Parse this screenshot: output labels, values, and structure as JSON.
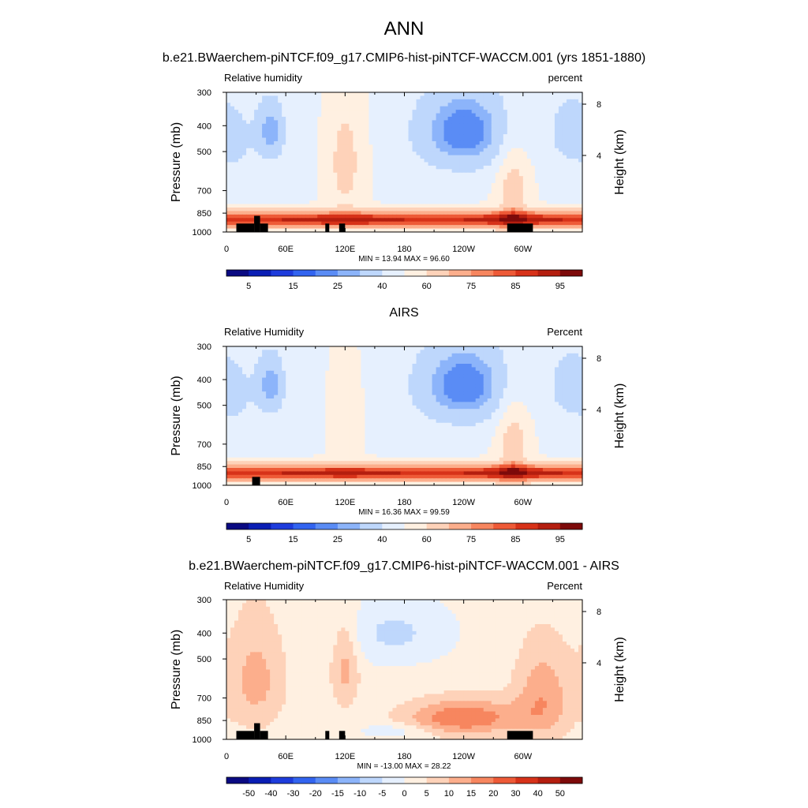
{
  "page": {
    "title": "ANN"
  },
  "colors": {
    "rh_palette": [
      "#0a0a82",
      "#0a1eb4",
      "#1e3cdc",
      "#3264f0",
      "#5a8cf5",
      "#8cb4fa",
      "#bed7fc",
      "#e6f0fe",
      "#fff0e1",
      "#fed2b9",
      "#fcae8c",
      "#f7865f",
      "#ee5a37",
      "#d73219",
      "#b41e0f",
      "#7d0a0a"
    ],
    "diff_palette": [
      "#0a0a82",
      "#0a1eb4",
      "#1e3cdc",
      "#3264f0",
      "#5a8cf5",
      "#8cb4fa",
      "#bed7fc",
      "#e6f0fe",
      "#fff0e1",
      "#fed2b9",
      "#fcae8c",
      "#f7865f",
      "#ee5a37",
      "#d73219",
      "#b41e0f",
      "#7d0a0a"
    ],
    "terrain": "#000000"
  },
  "chart_data": [
    {
      "type": "heatmap",
      "title": "b.e21.BWaerchem-piNTCF.f09_g17.CMIP6-hist-piNTCF-WACCM.001 (yrs 1851-1880)",
      "left_string": "Relative humidity",
      "right_string": "percent",
      "ylabel": "Pressure (mb)",
      "y2label": "Height (km)",
      "xticks": [
        "0",
        "60E",
        "120E",
        "180",
        "120W",
        "60W"
      ],
      "xtick_lons": [
        0,
        60,
        120,
        180,
        240,
        300
      ],
      "xlim": [
        0,
        360
      ],
      "yticks": [
        300,
        400,
        500,
        700,
        850,
        1000
      ],
      "ylim": [
        300,
        1000
      ],
      "y2ticks": [
        8,
        4
      ],
      "stats": "MIN =  13.94  MAX =  96.60",
      "min": 13.94,
      "max": 96.6,
      "colorbar_levels": [
        5,
        10,
        15,
        20,
        25,
        30,
        40,
        50,
        60,
        70,
        75,
        80,
        85,
        90,
        95
      ],
      "colorbar_labels": [
        "5",
        "15",
        "25",
        "40",
        "60",
        "75",
        "85",
        "95"
      ],
      "palette": "rh_palette",
      "terrain": [
        [
          10,
          28,
          930
        ],
        [
          28,
          34,
          870
        ],
        [
          34,
          42,
          930
        ],
        [
          100,
          104,
          930
        ],
        [
          114,
          120,
          930
        ],
        [
          284,
          310,
          930
        ]
      ]
    },
    {
      "type": "heatmap",
      "title": "AIRS",
      "left_string": "Relative Humidity",
      "right_string": "Percent",
      "ylabel": "Pressure (mb)",
      "y2label": "Height (km)",
      "xticks": [
        "0",
        "60E",
        "120E",
        "180",
        "120W",
        "60W"
      ],
      "xtick_lons": [
        0,
        60,
        120,
        180,
        240,
        300
      ],
      "xlim": [
        0,
        360
      ],
      "yticks": [
        300,
        400,
        500,
        700,
        850,
        1000
      ],
      "ylim": [
        300,
        1000
      ],
      "y2ticks": [
        8,
        4
      ],
      "stats": "MIN =  16.36  MAX =  99.59",
      "min": 16.36,
      "max": 99.59,
      "colorbar_levels": [
        5,
        10,
        15,
        20,
        25,
        30,
        40,
        50,
        60,
        70,
        75,
        80,
        85,
        90,
        95
      ],
      "colorbar_labels": [
        "5",
        "15",
        "25",
        "40",
        "60",
        "75",
        "85",
        "95"
      ],
      "palette": "rh_palette",
      "terrain": [
        [
          26,
          34,
          930
        ]
      ]
    },
    {
      "type": "heatmap",
      "title": "b.e21.BWaerchem-piNTCF.f09_g17.CMIP6-hist-piNTCF-WACCM.001 - AIRS",
      "left_string": "Relative Humidity",
      "right_string": "Percent",
      "ylabel": "Pressure (mb)",
      "y2label": "Height (km)",
      "xticks": [
        "0",
        "60E",
        "120E",
        "180",
        "120W",
        "60W"
      ],
      "xtick_lons": [
        0,
        60,
        120,
        180,
        240,
        300
      ],
      "xlim": [
        0,
        360
      ],
      "yticks": [
        300,
        400,
        500,
        700,
        850,
        1000
      ],
      "ylim": [
        300,
        1000
      ],
      "y2ticks": [
        8,
        4
      ],
      "stats": "MIN = -13.00  MAX =  28.22",
      "min": -13.0,
      "max": 28.22,
      "colorbar_levels": [
        -50,
        -40,
        -30,
        -20,
        -15,
        -10,
        -5,
        0,
        5,
        10,
        15,
        20,
        30,
        40,
        50
      ],
      "colorbar_labels": [
        "-50",
        "-40",
        "-30",
        "-20",
        "-15",
        "-10",
        "-5",
        "0",
        "5",
        "10",
        "15",
        "20",
        "30",
        "40",
        "50"
      ],
      "palette": "diff_palette",
      "terrain": [
        [
          10,
          28,
          930
        ],
        [
          28,
          34,
          870
        ],
        [
          34,
          42,
          930
        ],
        [
          100,
          104,
          930
        ],
        [
          114,
          120,
          930
        ],
        [
          284,
          310,
          930
        ]
      ]
    }
  ]
}
